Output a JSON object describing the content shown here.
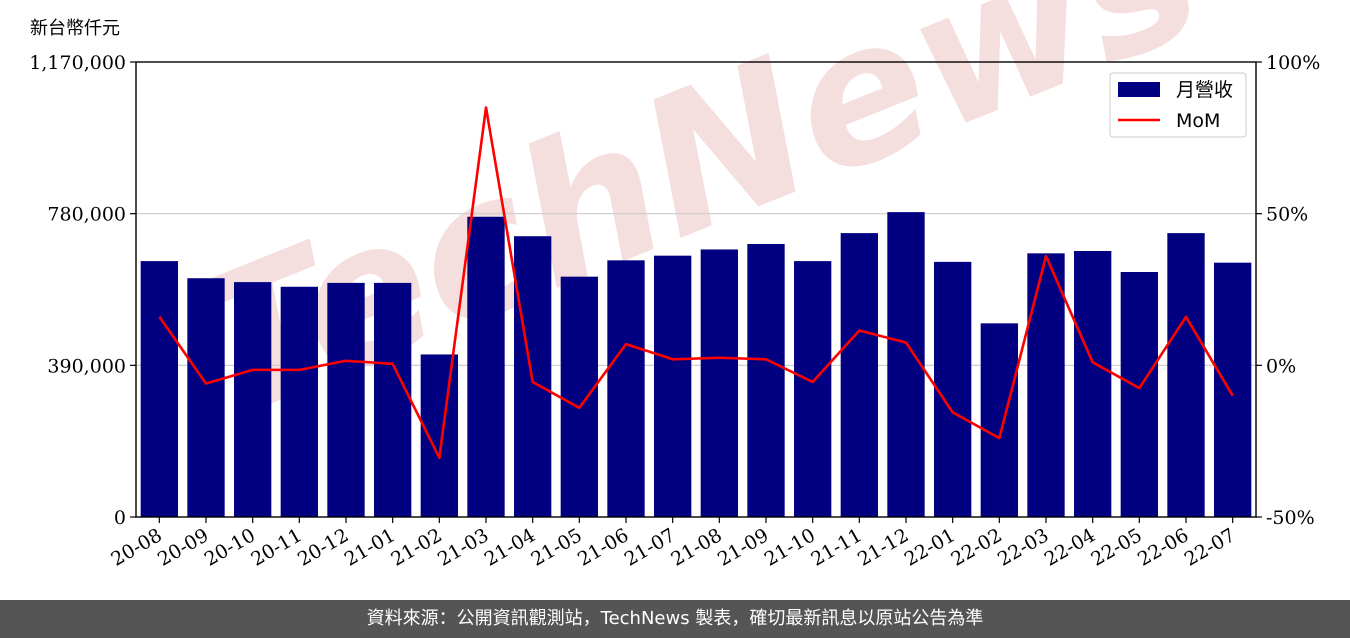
{
  "unit_label": "新台幣仟元",
  "footer_text": "資料來源：公開資訊觀測站，TechNews 製表，確切最新訊息以原站公告為準",
  "watermark": "TechNews",
  "colors": {
    "bar": "#000080",
    "line": "#ff0000",
    "grid": "#cccccc",
    "footer_bg": "#555555",
    "watermark": "#f5dede"
  },
  "chart_data": {
    "type": "bar",
    "categories": [
      "20-08",
      "20-09",
      "20-10",
      "20-11",
      "20-12",
      "21-01",
      "21-02",
      "21-03",
      "21-04",
      "21-05",
      "21-06",
      "21-07",
      "21-08",
      "21-09",
      "21-10",
      "21-11",
      "21-12",
      "22-01",
      "22-02",
      "22-03",
      "22-04",
      "22-05",
      "22-06",
      "22-07"
    ],
    "series": [
      {
        "name": "月營收",
        "type": "bar",
        "axis": "left",
        "values": [
          658000,
          614000,
          604000,
          592000,
          602000,
          602000,
          418000,
          772000,
          722000,
          618000,
          660000,
          672000,
          688000,
          702000,
          658000,
          730000,
          784000,
          656000,
          498000,
          678000,
          684000,
          630000,
          730000,
          654000
        ]
      },
      {
        "name": "MoM",
        "type": "line",
        "axis": "right",
        "values": [
          16,
          -6,
          -1.5,
          -1.5,
          1.5,
          0.5,
          -30.5,
          85,
          -5.5,
          -14,
          7,
          2,
          2.5,
          2,
          -5.5,
          11.5,
          7.5,
          -15.5,
          -24,
          36,
          1,
          -7.5,
          16,
          -10
        ]
      }
    ],
    "y_left": {
      "lim": [
        0,
        1170000
      ],
      "ticks": [
        0,
        390000,
        780000,
        1170000
      ],
      "tick_labels": [
        "0",
        "390,000",
        "780,000",
        "1,170,000"
      ]
    },
    "y_right": {
      "lim": [
        -50,
        100
      ],
      "ticks": [
        -50,
        0,
        50,
        100
      ],
      "tick_labels": [
        "-50%",
        "0%",
        "50%",
        "100%"
      ]
    },
    "grid": "horizontal",
    "legend": "top-right"
  }
}
